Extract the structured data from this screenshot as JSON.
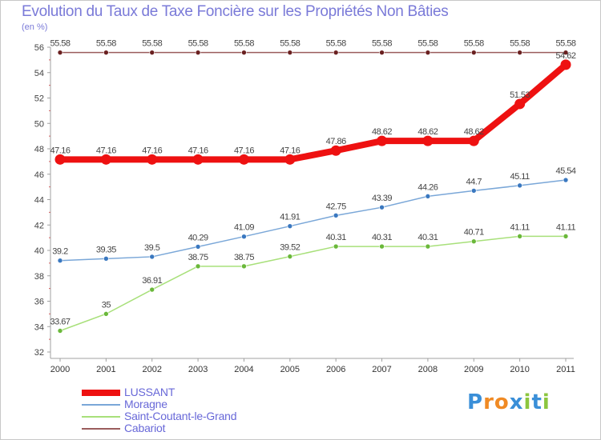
{
  "title": "Evolution du Taux de Taxe Foncière sur les Propriétés Non Bâties",
  "unit": "(en %)",
  "logo": {
    "text": "Proxiti",
    "letter_colors": [
      "#3a8fd8",
      "#f08a24",
      "#f08a24",
      "#3a8fd8",
      "#8cc63f",
      "#3a8fd8",
      "#8cc63f"
    ]
  },
  "chart_data": {
    "type": "line",
    "title": "Evolution du Taux de Taxe Foncière sur les Propriétés Non Bâties",
    "ylabel": "(en %)",
    "xlabel": "",
    "x": [
      "2000",
      "2001",
      "2002",
      "2003",
      "2004",
      "2005",
      "2006",
      "2007",
      "2008",
      "2009",
      "2010",
      "2011"
    ],
    "ylim": [
      32,
      56
    ],
    "yticks": [
      32,
      34,
      36,
      38,
      40,
      42,
      44,
      46,
      48,
      50,
      52,
      54,
      56
    ],
    "grid": false,
    "legend_position": "bottom-left",
    "series": [
      {
        "name": "LUSSANT",
        "color": "#ee1111",
        "marker": "#ee1111",
        "thick": true,
        "values": [
          47.16,
          47.16,
          47.16,
          47.16,
          47.16,
          47.16,
          47.86,
          48.62,
          48.62,
          48.62,
          51.53,
          54.62
        ],
        "labels": [
          "47.16",
          "47.16",
          "47.16",
          "47.16",
          "47.16",
          "47.16",
          "47.86",
          "48.62",
          "48.62",
          "48.62",
          "51.53",
          "54.62"
        ]
      },
      {
        "name": "Moragne",
        "color": "#7aa7d8",
        "marker": "#3a78c0",
        "thick": false,
        "values": [
          39.2,
          39.35,
          39.5,
          40.29,
          41.09,
          41.91,
          42.75,
          43.39,
          44.26,
          44.7,
          45.11,
          45.54
        ],
        "labels": [
          "39.2",
          "39.35",
          "39.5",
          "40.29",
          "41.09",
          "41.91",
          "42.75",
          "43.39",
          "44.26",
          "44.7",
          "45.11",
          "45.54"
        ]
      },
      {
        "name": "Saint-Coutant-le-Grand",
        "color": "#a8e07a",
        "marker": "#6ab83a",
        "thick": false,
        "values": [
          33.67,
          35,
          36.91,
          38.75,
          38.75,
          39.52,
          40.31,
          40.31,
          40.31,
          40.71,
          41.11,
          41.11
        ],
        "labels": [
          "33.67",
          "35",
          "36.91",
          "38.75",
          "38.75",
          "39.52",
          "40.31",
          "40.31",
          "40.31",
          "40.71",
          "41.11",
          "41.11"
        ]
      },
      {
        "name": "Cabariot",
        "color": "#9a5c5c",
        "marker": "#6a2020",
        "thick": false,
        "values": [
          55.58,
          55.58,
          55.58,
          55.58,
          55.58,
          55.58,
          55.58,
          55.58,
          55.58,
          55.58,
          55.58,
          55.58
        ],
        "labels": [
          "55.58",
          "55.58",
          "55.58",
          "55.58",
          "55.58",
          "55.58",
          "55.58",
          "55.58",
          "55.58",
          "55.58",
          "55.58",
          "55.58"
        ]
      }
    ]
  }
}
